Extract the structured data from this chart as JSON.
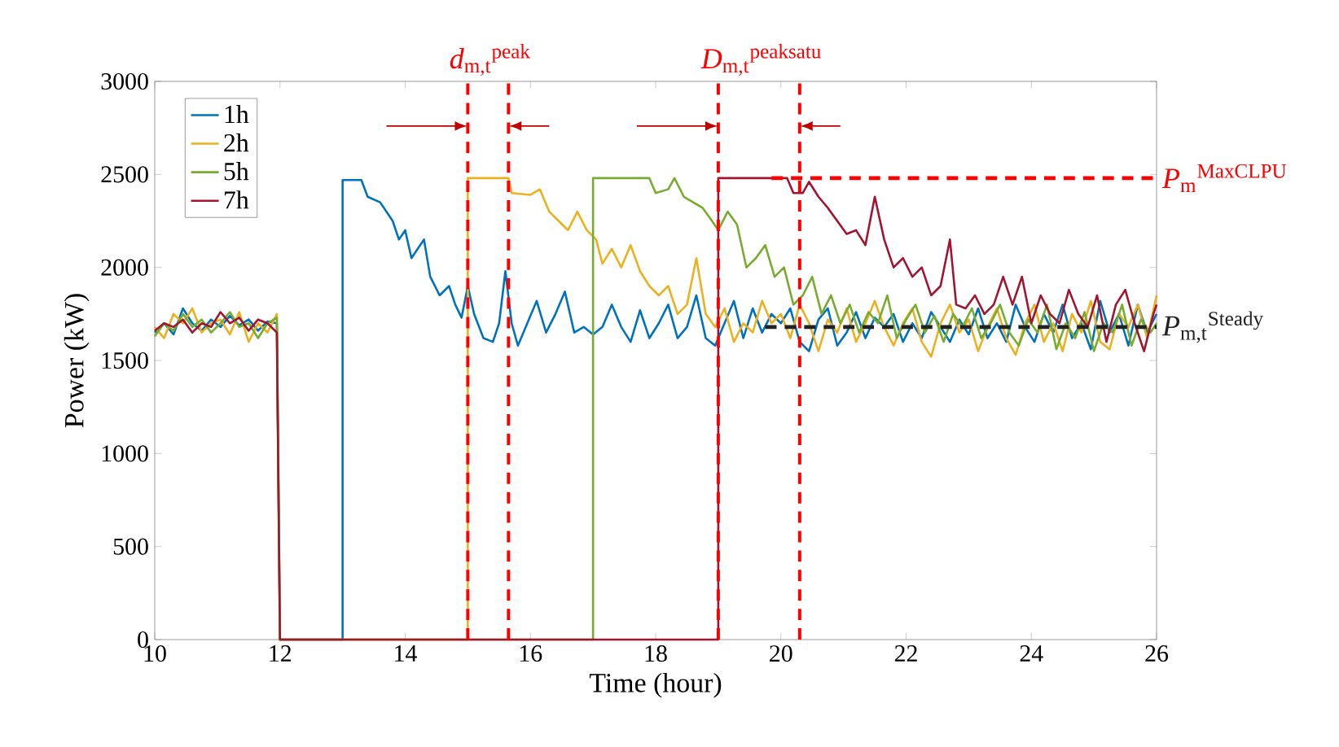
{
  "chart_data": {
    "type": "line",
    "xlabel": "Time (hour)",
    "ylabel": "Power (kW)",
    "xlim": [
      10,
      26
    ],
    "ylim": [
      0,
      3000
    ],
    "xticks": [
      10,
      12,
      14,
      16,
      18,
      20,
      22,
      24,
      26
    ],
    "yticks": [
      0,
      500,
      1000,
      1500,
      2000,
      2500,
      3000
    ],
    "legend": "top left",
    "series": [
      {
        "name": "1h",
        "color": "#0072bd",
        "x": [
          10.0,
          10.15,
          10.3,
          10.45,
          10.6,
          10.75,
          10.9,
          11.05,
          11.2,
          11.35,
          11.5,
          11.65,
          11.8,
          11.95,
          12.0,
          13.0,
          13.0,
          13.3,
          13.4,
          13.6,
          13.8,
          13.9,
          14.0,
          14.1,
          14.2,
          14.3,
          14.4,
          14.55,
          14.7,
          14.8,
          14.9,
          15.0,
          15.1,
          15.25,
          15.4,
          15.5,
          15.6,
          15.7,
          15.8,
          15.95,
          16.1,
          16.25,
          16.4,
          16.55,
          16.7,
          16.85,
          17.0,
          17.15,
          17.3,
          17.45,
          17.6,
          17.75,
          17.9,
          18.05,
          18.2,
          18.35,
          18.5,
          18.65,
          18.8,
          18.95,
          19.1,
          19.25,
          19.4,
          19.55,
          19.7,
          19.85,
          20.0,
          20.15,
          20.3,
          20.45,
          20.6,
          20.75,
          20.9,
          21.05,
          21.2,
          21.35,
          21.5,
          21.65,
          21.8,
          21.95,
          22.1,
          22.25,
          22.4,
          22.55,
          22.7,
          22.85,
          23.0,
          23.15,
          23.3,
          23.45,
          23.6,
          23.75,
          23.9,
          24.05,
          24.2,
          24.35,
          24.5,
          24.65,
          24.8,
          24.95,
          25.1,
          25.25,
          25.4,
          25.55,
          25.7,
          25.85,
          26.0
        ],
        "values": [
          1650,
          1700,
          1640,
          1780,
          1700,
          1660,
          1720,
          1680,
          1740,
          1690,
          1720,
          1660,
          1710,
          1700,
          0,
          0,
          2470,
          2470,
          2380,
          2350,
          2250,
          2150,
          2200,
          2050,
          2100,
          2150,
          1950,
          1850,
          1900,
          1800,
          1730,
          1900,
          1750,
          1620,
          1600,
          1700,
          1980,
          1700,
          1580,
          1700,
          1820,
          1650,
          1750,
          1870,
          1650,
          1680,
          1640,
          1680,
          1800,
          1680,
          1600,
          1770,
          1620,
          1700,
          1800,
          1620,
          1680,
          1850,
          1620,
          1580,
          1700,
          1820,
          1620,
          1780,
          1650,
          1750,
          1700,
          1780,
          1600,
          1550,
          1720,
          1780,
          1580,
          1650,
          1760,
          1620,
          1730,
          1680,
          1750,
          1600,
          1700,
          1620,
          1760,
          1680,
          1600,
          1720,
          1640,
          1780,
          1620,
          1700,
          1600,
          1800,
          1680,
          1600,
          1750,
          1650,
          1800,
          1620,
          1700,
          1560,
          1820,
          1650,
          1750,
          1580,
          1800,
          1650,
          1750
        ]
      },
      {
        "name": "2h",
        "color": "#edb120",
        "x": [
          10.0,
          10.15,
          10.3,
          10.45,
          10.6,
          10.75,
          10.9,
          11.05,
          11.2,
          11.35,
          11.5,
          11.65,
          11.8,
          11.95,
          12.0,
          15.0,
          15.0,
          15.65,
          15.7,
          16.0,
          16.15,
          16.3,
          16.45,
          16.6,
          16.75,
          16.9,
          17.05,
          17.15,
          17.3,
          17.45,
          17.6,
          17.75,
          17.9,
          18.05,
          18.2,
          18.35,
          18.5,
          18.65,
          18.8,
          18.95,
          19.1,
          19.25,
          19.4,
          19.55,
          19.7,
          19.85,
          20.0,
          20.15,
          20.3,
          20.45,
          20.6,
          20.75,
          20.9,
          21.05,
          21.2,
          21.35,
          21.5,
          21.65,
          21.8,
          21.95,
          22.1,
          22.25,
          22.4,
          22.55,
          22.7,
          22.85,
          23.0,
          23.15,
          23.3,
          23.45,
          23.6,
          23.75,
          23.9,
          24.05,
          24.2,
          24.35,
          24.5,
          24.65,
          24.8,
          24.95,
          25.1,
          25.25,
          25.4,
          25.55,
          25.7,
          25.85,
          26.0
        ],
        "values": [
          1680,
          1620,
          1750,
          1700,
          1780,
          1650,
          1700,
          1720,
          1640,
          1760,
          1600,
          1700,
          1650,
          1750,
          0,
          0,
          2480,
          2480,
          2400,
          2390,
          2420,
          2300,
          2250,
          2200,
          2300,
          2200,
          2150,
          2020,
          2100,
          2000,
          2120,
          1980,
          1900,
          1850,
          1900,
          1750,
          1800,
          2050,
          1750,
          1680,
          1780,
          1600,
          1700,
          1650,
          1820,
          1700,
          1750,
          1620,
          1800,
          1700,
          1550,
          1720,
          1650,
          1780,
          1600,
          1700,
          1820,
          1680,
          1580,
          1700,
          1780,
          1600,
          1520,
          1700,
          1800,
          1650,
          1720,
          1550,
          1680,
          1780,
          1620,
          1530,
          1700,
          1800,
          1600,
          1700,
          1550,
          1750,
          1650,
          1820,
          1600,
          1560,
          1750,
          1680,
          1800,
          1620,
          1850
        ]
      },
      {
        "name": "5h",
        "color": "#77ac30",
        "x": [
          10.0,
          10.15,
          10.3,
          10.45,
          10.6,
          10.75,
          10.9,
          11.05,
          11.2,
          11.35,
          11.5,
          11.65,
          11.8,
          11.95,
          12.0,
          17.0,
          17.0,
          17.9,
          18.0,
          18.2,
          18.3,
          18.45,
          18.6,
          18.75,
          18.9,
          19.0,
          19.15,
          19.3,
          19.45,
          19.6,
          19.75,
          19.9,
          20.05,
          20.2,
          20.35,
          20.5,
          20.65,
          20.8,
          20.95,
          21.1,
          21.25,
          21.4,
          21.55,
          21.7,
          21.85,
          22.0,
          22.15,
          22.3,
          22.45,
          22.6,
          22.75,
          22.9,
          23.05,
          23.2,
          23.35,
          23.5,
          23.65,
          23.8,
          23.95,
          24.1,
          24.25,
          24.4,
          24.55,
          24.7,
          24.85,
          25.0,
          25.15,
          25.3,
          25.45,
          25.6,
          25.75,
          25.9,
          26.0
        ],
        "values": [
          1630,
          1700,
          1660,
          1750,
          1680,
          1720,
          1650,
          1700,
          1760,
          1680,
          1700,
          1620,
          1700,
          1730,
          0,
          0,
          2480,
          2480,
          2400,
          2420,
          2480,
          2380,
          2350,
          2320,
          2250,
          2200,
          2300,
          2230,
          2000,
          2050,
          2120,
          1950,
          2000,
          1800,
          1850,
          1950,
          1750,
          1850,
          1700,
          1800,
          1650,
          1760,
          1700,
          1850,
          1620,
          1720,
          1800,
          1650,
          1740,
          1600,
          1750,
          1680,
          1780,
          1620,
          1700,
          1800,
          1650,
          1580,
          1720,
          1650,
          1800,
          1560,
          1700,
          1620,
          1760,
          1550,
          1700,
          1650,
          1800,
          1580,
          1720,
          1650,
          1700
        ]
      },
      {
        "name": "7h",
        "color": "#a2142f",
        "x": [
          10.0,
          10.15,
          10.3,
          10.45,
          10.6,
          10.75,
          10.9,
          11.05,
          11.2,
          11.35,
          11.5,
          11.65,
          11.8,
          11.95,
          12.0,
          19.0,
          19.0,
          20.1,
          20.2,
          20.35,
          20.45,
          20.6,
          20.75,
          20.9,
          21.05,
          21.2,
          21.35,
          21.5,
          21.65,
          21.8,
          21.95,
          22.1,
          22.25,
          22.4,
          22.55,
          22.7,
          22.8,
          22.95,
          23.1,
          23.25,
          23.4,
          23.55,
          23.7,
          23.85,
          24.0,
          24.15,
          24.3,
          24.45,
          24.6,
          24.75,
          24.9,
          25.05,
          25.2,
          25.35,
          25.5,
          25.65,
          25.8,
          25.95,
          26.0
        ],
        "values": [
          1660,
          1700,
          1680,
          1720,
          1650,
          1700,
          1680,
          1760,
          1700,
          1730,
          1660,
          1720,
          1700,
          1650,
          0,
          0,
          2480,
          2480,
          2400,
          2400,
          2460,
          2380,
          2320,
          2250,
          2180,
          2200,
          2120,
          2380,
          2150,
          2000,
          2050,
          1950,
          2000,
          1850,
          1900,
          2150,
          1800,
          1780,
          1850,
          1750,
          1800,
          1950,
          1800,
          1950,
          1700,
          1850,
          1750,
          1700,
          1880,
          1750,
          1680,
          1850,
          1600,
          1800,
          1880,
          1700,
          1550,
          1750,
          1800
        ]
      },
      {
        "name": "*P*$_{m}$$^{MaxCLPU}$",
        "type": "line",
        "line_style": "dashed",
        "color": "#ff0000",
        "x": [
          19.85,
          26
        ],
        "values": [
          2480,
          2480
        ]
      },
      {
        "name": "*P*$_{m,t}$$^{Steady}$",
        "type": "line",
        "line_style": "dashed",
        "color": "#222222",
        "x": [
          19.75,
          26
        ],
        "values": [
          1680,
          1680
        ]
      }
    ],
    "ref_lines": [
      {
        "axis": "x",
        "value": 15,
        "color": "#ff0000",
        "line_style": "dashed"
      },
      {
        "axis": "x",
        "value": 15.65,
        "label": "*d*$_{m,t}$$^{peak}$",
        "color": "#ff0000",
        "line_style": "dashed"
      },
      {
        "axis": "x",
        "value": 19,
        "color": "#ff0000",
        "line_style": "dashed"
      },
      {
        "axis": "x",
        "value": 20.3,
        "label": "*D*$_{m,t}$$^{peaksatu}$",
        "color": "#ff0000",
        "line_style": "dashed"
      }
    ]
  }
}
